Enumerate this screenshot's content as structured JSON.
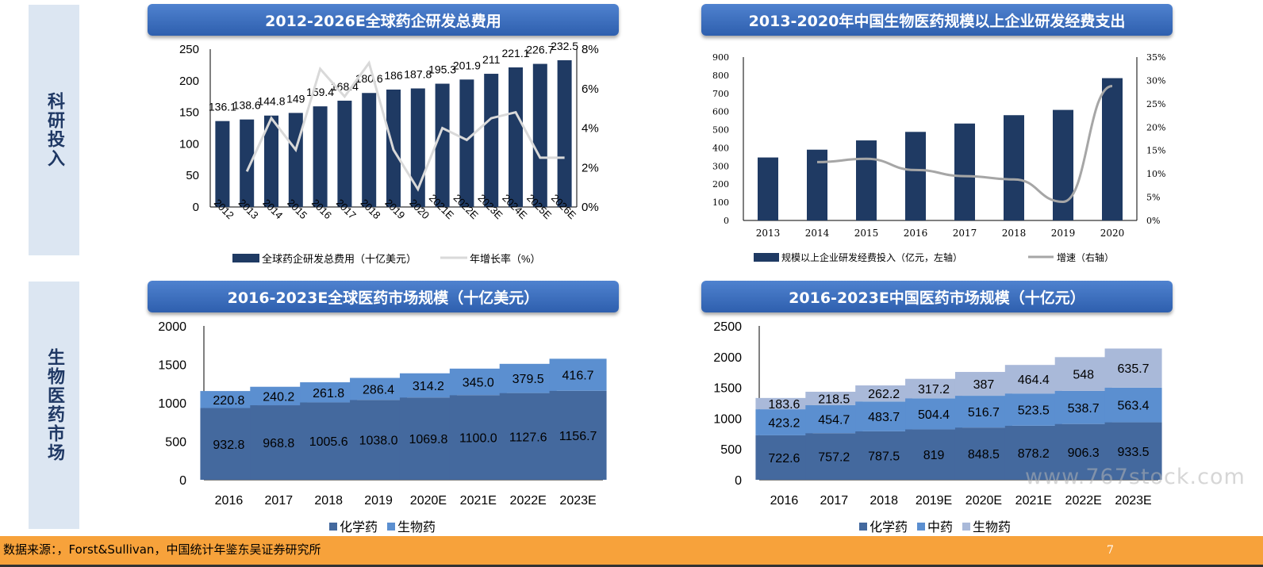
{
  "side_labels": [
    "科研投入",
    "生物医药市场"
  ],
  "footer": {
    "source": "数据来源：，Forst&Sullivan，中国统计年鉴东吴证券研究所",
    "page": "7"
  },
  "watermark": "www.767stock.com",
  "chart_data": [
    {
      "type": "bar",
      "title": "2012-2026E全球药企研发总费用",
      "categories": [
        "2012",
        "2013",
        "2014",
        "2015",
        "2016",
        "2017",
        "2018",
        "2019",
        "2020",
        "2021E",
        "2022E",
        "2023E",
        "2024E",
        "2025E",
        "2026E"
      ],
      "series": [
        {
          "name": "全球药企研发总费用（十亿美元）",
          "type": "bar",
          "axis": "left",
          "color": "#1f3a63",
          "values": [
            136.1,
            138.6,
            144.8,
            149,
            159.4,
            168.4,
            180.6,
            186,
            187.8,
            195.3,
            201.9,
            211,
            221.1,
            226.7,
            232.5
          ]
        },
        {
          "name": "年增长率（%）",
          "type": "line",
          "axis": "right",
          "color": "#d9d9d9",
          "values": [
            null,
            1.8,
            4.5,
            2.9,
            7.0,
            5.6,
            7.3,
            2.9,
            0.9,
            4.0,
            3.4,
            4.5,
            4.8,
            2.5,
            2.5
          ]
        }
      ],
      "ylim": [
        0,
        250
      ],
      "yticks": [
        0,
        50,
        100,
        150,
        200,
        250
      ],
      "y2lim": [
        0,
        8
      ],
      "y2ticks": [
        "0%",
        "2%",
        "4%",
        "6%",
        "8%"
      ],
      "legend": "bottom"
    },
    {
      "type": "bar",
      "title": "2013-2020年中国生物医药规模以上企业研发经费支出",
      "categories": [
        "2013",
        "2014",
        "2015",
        "2016",
        "2017",
        "2018",
        "2019",
        "2020"
      ],
      "series": [
        {
          "name": "规模以上企业研发经费投入（亿元，左轴）",
          "type": "bar",
          "axis": "left",
          "color": "#1f3a63",
          "values": [
            347,
            390,
            441,
            488,
            534,
            580,
            609,
            784
          ]
        },
        {
          "name": "增速（右轴）",
          "type": "line",
          "axis": "right",
          "color": "#a6a6a6",
          "values": [
            null,
            12.5,
            13.2,
            10.8,
            9.5,
            8.8,
            4.0,
            28.8
          ]
        }
      ],
      "ylim": [
        0,
        900
      ],
      "yticks": [
        0,
        100,
        200,
        300,
        400,
        500,
        600,
        700,
        800,
        900
      ],
      "y2lim": [
        0,
        35
      ],
      "y2ticks": [
        "0%",
        "5%",
        "10%",
        "15%",
        "20%",
        "25%",
        "30%",
        "35%"
      ],
      "legend": "bottom"
    },
    {
      "type": "bar",
      "stacked": true,
      "title": "2016-2023E全球医药市场规模（十亿美元）",
      "categories": [
        "2016",
        "2017",
        "2018",
        "2019",
        "2020E",
        "2021E",
        "2022E",
        "2023E"
      ],
      "series": [
        {
          "name": "化学药",
          "color": "#44699e",
          "labels": [
            "932.8",
            "968.8",
            "1005.6",
            "1038.0",
            "1069.8",
            "1100.0",
            "1127.6",
            "1156.7"
          ],
          "values": [
            932.8,
            968.8,
            1005.6,
            1038.0,
            1069.8,
            1100.0,
            1127.6,
            1156.7
          ]
        },
        {
          "name": "生物药",
          "color": "#5b8fd0",
          "labels": [
            "220.8",
            "240.2",
            "261.8",
            "286.4",
            "314.2",
            "345.0",
            "379.5",
            "416.7"
          ],
          "values": [
            220.8,
            240.2,
            261.8,
            286.4,
            314.2,
            345.0,
            379.5,
            416.7
          ]
        }
      ],
      "ylim": [
        0,
        2000
      ],
      "yticks": [
        0,
        500,
        1000,
        1500,
        2000
      ],
      "legend": "bottom"
    },
    {
      "type": "bar",
      "stacked": true,
      "title": "2016-2023E中国医药市场规模（十亿元）",
      "categories": [
        "2016",
        "2017",
        "2018",
        "2019E",
        "2020E",
        "2021E",
        "2022E",
        "2023E"
      ],
      "series": [
        {
          "name": "化学药",
          "color": "#44699e",
          "labels": [
            "722.6",
            "757.2",
            "787.5",
            "819",
            "848.5",
            "878.2",
            "906.3",
            "933.5"
          ],
          "values": [
            722.6,
            757.2,
            787.5,
            819,
            848.5,
            878.2,
            906.3,
            933.5
          ]
        },
        {
          "name": "中药",
          "color": "#5b8fd0",
          "labels": [
            "423.2",
            "454.7",
            "483.7",
            "504.4",
            "516.7",
            "523.5",
            "538.7",
            "563.4"
          ],
          "values": [
            423.2,
            454.7,
            483.7,
            504.4,
            516.7,
            523.5,
            538.7,
            563.4
          ]
        },
        {
          "name": "生物药",
          "color": "#a9b9d9",
          "labels": [
            "183.6",
            "218.5",
            "262.2",
            "317.2",
            "387",
            "464.4",
            "548",
            "635.7"
          ],
          "values": [
            183.6,
            218.5,
            262.2,
            317.2,
            387,
            464.4,
            548,
            635.7
          ]
        }
      ],
      "ylim": [
        0,
        2500
      ],
      "yticks": [
        0,
        500,
        1000,
        1500,
        2000,
        2500
      ],
      "legend": "bottom"
    }
  ]
}
